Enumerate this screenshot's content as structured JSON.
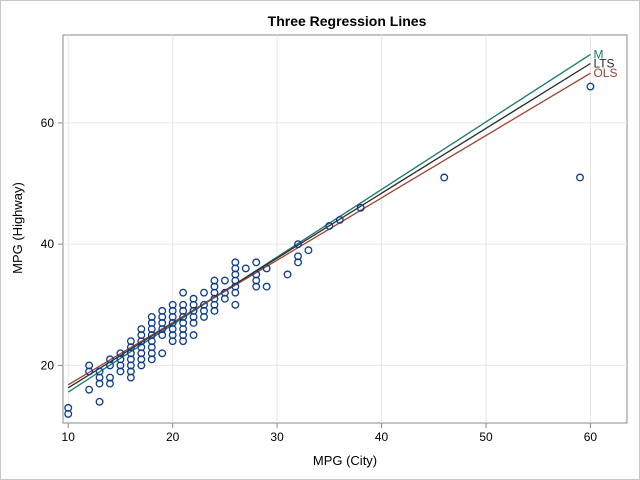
{
  "chart_data": {
    "type": "scatter",
    "title": "Three Regression Lines",
    "xlabel": "MPG (City)",
    "ylabel": "MPG (Highway)",
    "xlim": [
      9.5,
      63.5
    ],
    "ylim": [
      10.5,
      74.5
    ],
    "xticks": [
      10,
      20,
      30,
      40,
      50,
      60
    ],
    "yticks": [
      20,
      40,
      60
    ],
    "grid": true,
    "colors": {
      "marker": "#0b3b8c",
      "M": "#1a7a6e",
      "LTS": "#2b2b2b",
      "OLS": "#a0412d",
      "grid": "#e6e6e6",
      "axis": "#888888"
    },
    "lines": [
      {
        "name": "M",
        "x": [
          10,
          60
        ],
        "y": [
          15.6,
          71.3
        ]
      },
      {
        "name": "LTS",
        "x": [
          10,
          60
        ],
        "y": [
          16.3,
          69.8
        ]
      },
      {
        "name": "OLS",
        "x": [
          10,
          60
        ],
        "y": [
          16.8,
          68.2
        ]
      }
    ],
    "points": [
      [
        10,
        12
      ],
      [
        10,
        13
      ],
      [
        12,
        16
      ],
      [
        12,
        19
      ],
      [
        12,
        20
      ],
      [
        13,
        14
      ],
      [
        13,
        17
      ],
      [
        13,
        18
      ],
      [
        13,
        19
      ],
      [
        14,
        17
      ],
      [
        14,
        18
      ],
      [
        14,
        20
      ],
      [
        14,
        21
      ],
      [
        15,
        19
      ],
      [
        15,
        20
      ],
      [
        15,
        21
      ],
      [
        15,
        22
      ],
      [
        16,
        18
      ],
      [
        16,
        19
      ],
      [
        16,
        20
      ],
      [
        16,
        21
      ],
      [
        16,
        22
      ],
      [
        16,
        23
      ],
      [
        16,
        24
      ],
      [
        17,
        20
      ],
      [
        17,
        21
      ],
      [
        17,
        22
      ],
      [
        17,
        23
      ],
      [
        17,
        24
      ],
      [
        17,
        25
      ],
      [
        17,
        26
      ],
      [
        18,
        21
      ],
      [
        18,
        22
      ],
      [
        18,
        23
      ],
      [
        18,
        24
      ],
      [
        18,
        25
      ],
      [
        18,
        26
      ],
      [
        18,
        27
      ],
      [
        18,
        28
      ],
      [
        19,
        22
      ],
      [
        19,
        25
      ],
      [
        19,
        26
      ],
      [
        19,
        27
      ],
      [
        19,
        28
      ],
      [
        19,
        29
      ],
      [
        20,
        24
      ],
      [
        20,
        25
      ],
      [
        20,
        26
      ],
      [
        20,
        27
      ],
      [
        20,
        28
      ],
      [
        20,
        29
      ],
      [
        20,
        30
      ],
      [
        21,
        24
      ],
      [
        21,
        25
      ],
      [
        21,
        26
      ],
      [
        21,
        27
      ],
      [
        21,
        28
      ],
      [
        21,
        29
      ],
      [
        21,
        30
      ],
      [
        21,
        32
      ],
      [
        22,
        25
      ],
      [
        22,
        27
      ],
      [
        22,
        28
      ],
      [
        22,
        29
      ],
      [
        22,
        30
      ],
      [
        22,
        31
      ],
      [
        23,
        28
      ],
      [
        23,
        29
      ],
      [
        23,
        30
      ],
      [
        23,
        32
      ],
      [
        24,
        29
      ],
      [
        24,
        30
      ],
      [
        24,
        31
      ],
      [
        24,
        32
      ],
      [
        24,
        33
      ],
      [
        24,
        34
      ],
      [
        25,
        31
      ],
      [
        25,
        32
      ],
      [
        25,
        34
      ],
      [
        26,
        30
      ],
      [
        26,
        32
      ],
      [
        26,
        33
      ],
      [
        26,
        34
      ],
      [
        26,
        35
      ],
      [
        26,
        36
      ],
      [
        26,
        37
      ],
      [
        27,
        36
      ],
      [
        28,
        33
      ],
      [
        28,
        34
      ],
      [
        28,
        35
      ],
      [
        28,
        37
      ],
      [
        29,
        33
      ],
      [
        29,
        36
      ],
      [
        31,
        35
      ],
      [
        32,
        37
      ],
      [
        32,
        38
      ],
      [
        32,
        40
      ],
      [
        33,
        39
      ],
      [
        35,
        43
      ],
      [
        36,
        44
      ],
      [
        38,
        46
      ],
      [
        46,
        51
      ],
      [
        59,
        51
      ],
      [
        60,
        66
      ]
    ]
  }
}
